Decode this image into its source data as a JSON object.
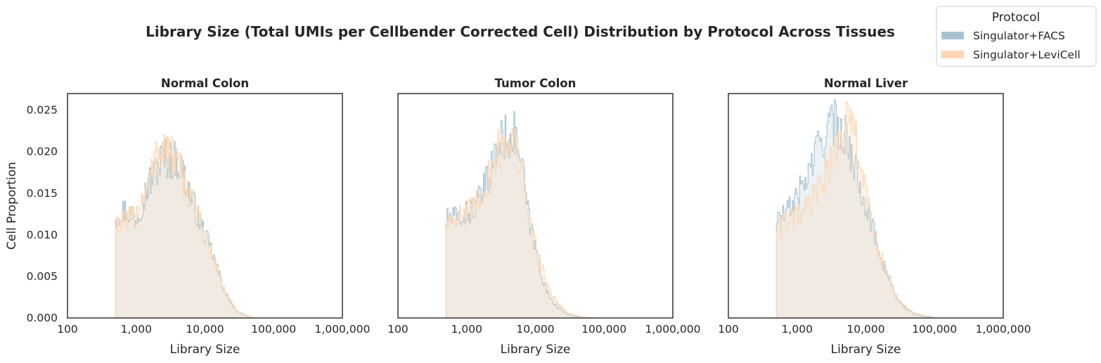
{
  "figure": {
    "title": "Library Size (Total UMIs per Cellbender Corrected Cell) Distribution by Protocol Across Tissues"
  },
  "legend": {
    "title": "Protocol",
    "placement": "top-right",
    "items": [
      {
        "label": "Singulator+FACS",
        "color": "#a9c4d0"
      },
      {
        "label": "Singulator+LeviCell",
        "color": "#fdd7b4"
      }
    ]
  },
  "chart_data": [
    {
      "type": "area",
      "title": "Normal Colon",
      "xlabel": "Library Size",
      "ylabel": "Cell Proportion",
      "x_scale": "log",
      "xlim": [
        100,
        1000000
      ],
      "ylim": [
        0,
        0.027
      ],
      "xticks": [
        "100",
        "1,000",
        "10,000",
        "100,000",
        "1,000,000"
      ],
      "yticks": [
        "0.000",
        "0.005",
        "0.010",
        "0.015",
        "0.020",
        "0.025"
      ],
      "grid": false,
      "series": [
        {
          "name": "Singulator+FACS",
          "color": "#a9c4d0",
          "x": [
            500,
            700,
            1000,
            1500,
            2000,
            2500,
            3000,
            4000,
            5000,
            6000,
            7000,
            8000,
            10000,
            12000,
            15000,
            20000,
            25000,
            30000,
            40000,
            50000
          ],
          "y": [
            0.0125,
            0.013,
            0.012,
            0.016,
            0.018,
            0.0195,
            0.019,
            0.019,
            0.017,
            0.015,
            0.0135,
            0.012,
            0.01,
            0.0085,
            0.006,
            0.003,
            0.0015,
            0.0007,
            0.0003,
            0.0001
          ]
        },
        {
          "name": "Singulator+LeviCell",
          "color": "#fdd7b4",
          "x": [
            500,
            700,
            1000,
            1500,
            2000,
            2500,
            3000,
            4000,
            5000,
            6000,
            7000,
            8000,
            10000,
            12000,
            15000,
            20000,
            25000,
            30000,
            40000,
            50000
          ],
          "y": [
            0.0115,
            0.0115,
            0.0125,
            0.0165,
            0.0195,
            0.021,
            0.02,
            0.0185,
            0.0165,
            0.015,
            0.0135,
            0.012,
            0.01,
            0.008,
            0.006,
            0.003,
            0.0017,
            0.0008,
            0.0003,
            0.0001
          ]
        }
      ]
    },
    {
      "type": "area",
      "title": "Tumor Colon",
      "xlabel": "Library Size",
      "ylabel": "",
      "x_scale": "log",
      "xlim": [
        100,
        1000000
      ],
      "ylim": [
        0,
        0.027
      ],
      "xticks": [
        "100",
        "1,000",
        "10,000",
        "100,000",
        "1,000,000"
      ],
      "yticks": [],
      "grid": false,
      "series": [
        {
          "name": "Singulator+FACS",
          "color": "#a9c4d0",
          "x": [
            500,
            700,
            1000,
            1500,
            2000,
            2500,
            3000,
            4000,
            5000,
            6000,
            7000,
            8000,
            10000,
            12000,
            15000,
            20000,
            25000,
            30000,
            40000,
            50000,
            70000
          ],
          "y": [
            0.012,
            0.012,
            0.0125,
            0.014,
            0.0165,
            0.019,
            0.021,
            0.022,
            0.022,
            0.0195,
            0.016,
            0.012,
            0.0085,
            0.0055,
            0.003,
            0.0015,
            0.0008,
            0.0004,
            0.0002,
            0.0001,
            0.0
          ]
        },
        {
          "name": "Singulator+LeviCell",
          "color": "#fdd7b4",
          "x": [
            500,
            700,
            1000,
            1500,
            2000,
            2500,
            3000,
            4000,
            5000,
            6000,
            7000,
            8000,
            10000,
            12000,
            15000,
            20000,
            25000,
            30000,
            40000,
            50000,
            70000
          ],
          "y": [
            0.0115,
            0.0125,
            0.0125,
            0.014,
            0.0165,
            0.019,
            0.0205,
            0.022,
            0.021,
            0.0185,
            0.0155,
            0.012,
            0.009,
            0.0065,
            0.004,
            0.002,
            0.0012,
            0.0006,
            0.0003,
            0.0001,
            0.0
          ]
        }
      ]
    },
    {
      "type": "area",
      "title": "Normal Liver",
      "xlabel": "Library Size",
      "ylabel": "",
      "x_scale": "log",
      "xlim": [
        100,
        1000000
      ],
      "ylim": [
        0,
        0.027
      ],
      "xticks": [
        "100",
        "1,000",
        "10,000",
        "100,000",
        "1,000,000"
      ],
      "yticks": [],
      "grid": false,
      "series": [
        {
          "name": "Singulator+FACS",
          "color": "#a9c4d0",
          "x": [
            500,
            700,
            1000,
            1500,
            2000,
            2500,
            3000,
            4000,
            5000,
            6000,
            7000,
            8000,
            10000,
            12000,
            15000,
            20000,
            25000,
            30000,
            40000,
            50000,
            70000,
            100000
          ],
          "y": [
            0.012,
            0.0125,
            0.0145,
            0.0175,
            0.0205,
            0.022,
            0.023,
            0.0235,
            0.022,
            0.02,
            0.018,
            0.0165,
            0.014,
            0.0115,
            0.0085,
            0.0055,
            0.0035,
            0.002,
            0.001,
            0.0005,
            0.0002,
            0.0
          ]
        },
        {
          "name": "Singulator+LeviCell",
          "color": "#fdd7b4",
          "x": [
            500,
            700,
            1000,
            1500,
            2000,
            2500,
            3000,
            4000,
            5000,
            6000,
            7000,
            8000,
            10000,
            12000,
            15000,
            20000,
            25000,
            30000,
            40000,
            50000,
            70000,
            100000
          ],
          "y": [
            0.011,
            0.0115,
            0.012,
            0.0135,
            0.0155,
            0.017,
            0.0185,
            0.021,
            0.0235,
            0.0235,
            0.022,
            0.0195,
            0.015,
            0.0115,
            0.0085,
            0.0055,
            0.0035,
            0.002,
            0.0012,
            0.0006,
            0.0003,
            0.0001
          ]
        }
      ]
    }
  ]
}
